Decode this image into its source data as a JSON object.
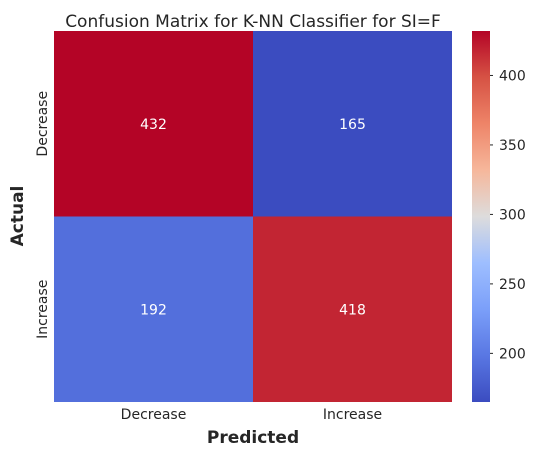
{
  "chart_data": {
    "type": "heatmap",
    "title": "Confusion Matrix for K-NN Classifier for SI=F",
    "xlabel": "Predicted",
    "ylabel": "Actual",
    "x_categories": [
      "Decrease",
      "Increase"
    ],
    "y_categories": [
      "Decrease",
      "Increase"
    ],
    "values": [
      [
        432,
        165
      ],
      [
        192,
        418
      ]
    ],
    "colormap": "coolwarm",
    "vmin": 165,
    "vmax": 432,
    "colorbar_ticks": [
      200,
      250,
      300,
      350,
      400
    ],
    "grid": false
  }
}
